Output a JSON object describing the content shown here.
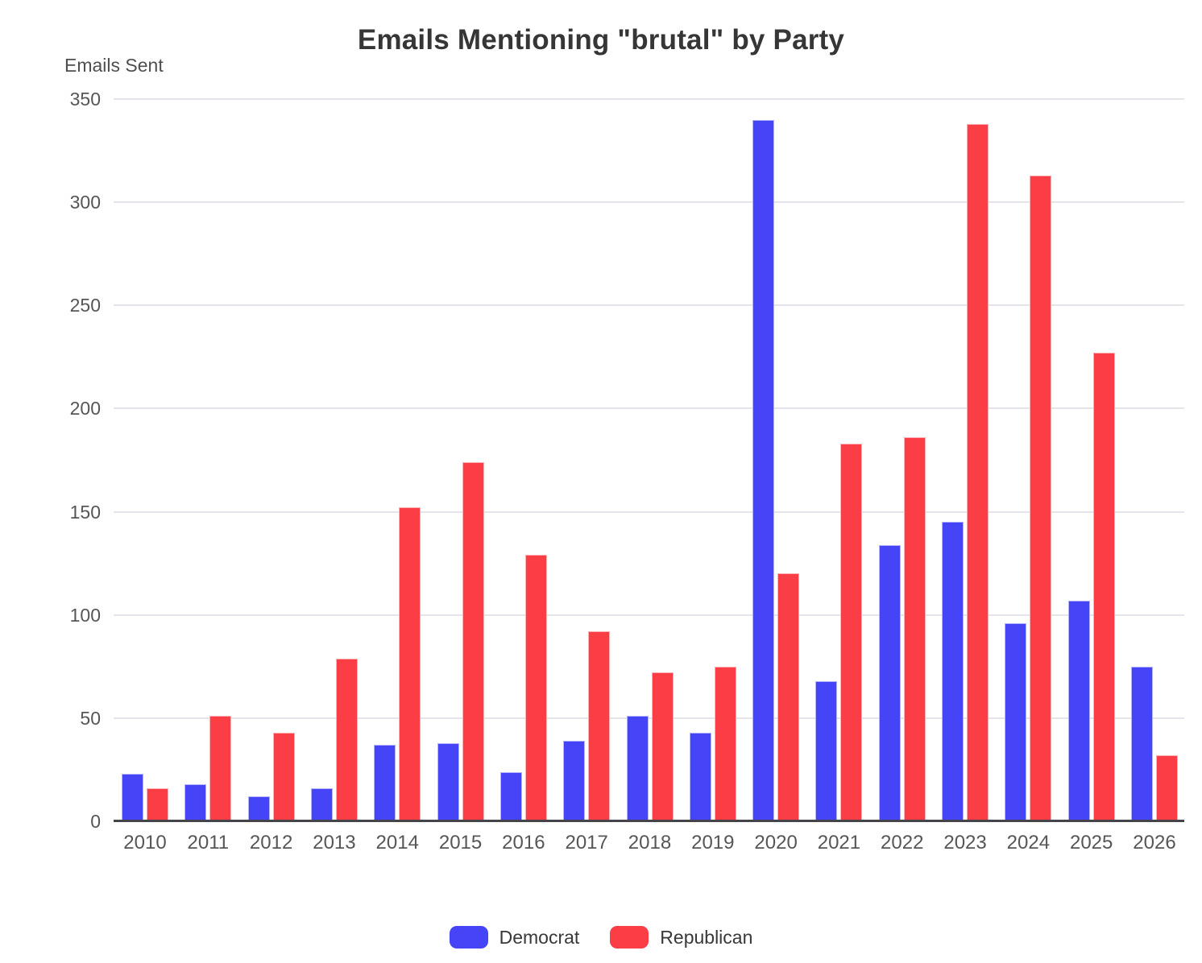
{
  "title": "Emails Mentioning \"brutal\" by Party",
  "y_axis_title": "Emails Sent",
  "colors": {
    "democrat": "#4545F7",
    "republican": "#FB3E46",
    "gridline": "#e4e4ea",
    "axis_line": "#44444a",
    "title_text": "#363636",
    "tick_text": "#565656"
  },
  "chart_data": {
    "type": "bar",
    "title": "Emails Mentioning \"brutal\" by Party",
    "xlabel": "",
    "ylabel": "Emails Sent",
    "ylim": [
      0,
      350
    ],
    "yticks": [
      0,
      50,
      100,
      150,
      200,
      250,
      300,
      350
    ],
    "grid": true,
    "legend_position": "bottom",
    "categories": [
      "2010",
      "2011",
      "2012",
      "2013",
      "2014",
      "2015",
      "2016",
      "2017",
      "2018",
      "2019",
      "2020",
      "2021",
      "2022",
      "2023",
      "2024",
      "2025",
      "2026"
    ],
    "series": [
      {
        "name": "Democrat",
        "color": "#4545F7",
        "values": [
          23,
          18,
          12,
          16,
          37,
          38,
          24,
          39,
          51,
          43,
          340,
          68,
          134,
          145,
          96,
          107,
          75
        ]
      },
      {
        "name": "Republican",
        "color": "#FB3E46",
        "values": [
          16,
          51,
          43,
          79,
          152,
          174,
          129,
          92,
          72,
          75,
          120,
          183,
          186,
          338,
          313,
          227,
          32
        ]
      }
    ]
  }
}
